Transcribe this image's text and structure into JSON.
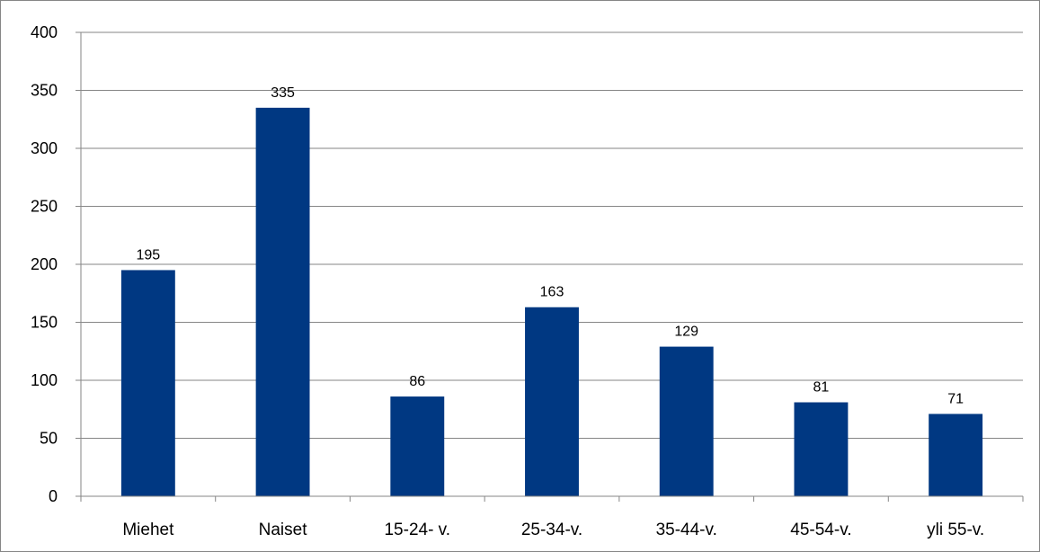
{
  "chart_data": {
    "type": "bar",
    "categories": [
      "Miehet",
      "Naiset",
      "15-24- v.",
      "25-34-v.",
      "35-44-v.",
      "45-54-v.",
      "yli 55-v."
    ],
    "values": [
      195,
      335,
      86,
      163,
      129,
      81,
      71
    ],
    "data_labels": [
      "195",
      "335",
      "86",
      "163",
      "129",
      "81",
      "71"
    ],
    "title": "",
    "xlabel": "",
    "ylabel": "",
    "ylim": [
      0,
      400
    ],
    "yticks": [
      0,
      50,
      100,
      150,
      200,
      250,
      300,
      350,
      400
    ],
    "ytick_labels": [
      "0",
      "50",
      "100",
      "150",
      "200",
      "250",
      "300",
      "350",
      "400"
    ],
    "grid": true,
    "legend": "none",
    "colors": {
      "bar": "#003882",
      "grid": "#868686",
      "axis": "#868686"
    }
  }
}
